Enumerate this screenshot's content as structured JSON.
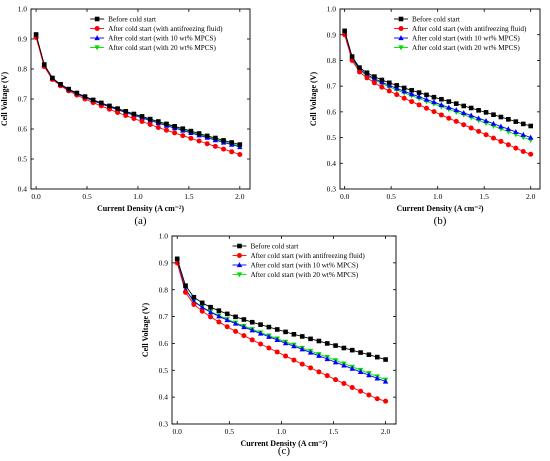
{
  "chart_data": [
    {
      "type": "line",
      "panel_label": "(a)",
      "xlabel": "Current Density (A cm⁻²)",
      "ylabel": "Cell Voltage (V)",
      "xlim": [
        -0.05,
        2.1
      ],
      "ylim": [
        0.4,
        1.0
      ],
      "xticks": [
        "0.0",
        "0.5",
        "1.0",
        "1.5",
        "2.0"
      ],
      "yticks": [
        "0.4",
        "0.5",
        "0.6",
        "0.7",
        "0.8",
        "0.9",
        "1.0"
      ],
      "legend_position": "top-right",
      "x": [
        0.0,
        0.08,
        0.16,
        0.24,
        0.32,
        0.4,
        0.48,
        0.56,
        0.64,
        0.72,
        0.8,
        0.88,
        0.96,
        1.04,
        1.12,
        1.2,
        1.28,
        1.36,
        1.44,
        1.52,
        1.6,
        1.68,
        1.76,
        1.84,
        1.92,
        2.0
      ],
      "series": [
        {
          "name": "Before cold start",
          "color": "#000000",
          "marker": "square",
          "values": [
            0.915,
            0.815,
            0.77,
            0.749,
            0.733,
            0.72,
            0.708,
            0.697,
            0.687,
            0.677,
            0.668,
            0.659,
            0.65,
            0.642,
            0.633,
            0.625,
            0.617,
            0.609,
            0.601,
            0.593,
            0.585,
            0.577,
            0.57,
            0.562,
            0.555,
            0.548
          ]
        },
        {
          "name": "After cold start (with antifreezing fluid)",
          "color": "#ff0000",
          "marker": "circle",
          "values": [
            0.905,
            0.808,
            0.765,
            0.744,
            0.727,
            0.713,
            0.7,
            0.688,
            0.677,
            0.666,
            0.655,
            0.645,
            0.635,
            0.625,
            0.615,
            0.605,
            0.596,
            0.587,
            0.578,
            0.569,
            0.56,
            0.551,
            0.542,
            0.533,
            0.524,
            0.515
          ]
        },
        {
          "name": "After cold start (with 10 wt% MPCS)",
          "color": "#0000ff",
          "marker": "triangle-up",
          "values": [
            0.91,
            0.81,
            0.768,
            0.747,
            0.731,
            0.717,
            0.705,
            0.694,
            0.684,
            0.674,
            0.664,
            0.655,
            0.646,
            0.637,
            0.628,
            0.62,
            0.611,
            0.603,
            0.595,
            0.587,
            0.579,
            0.571,
            0.563,
            0.555,
            0.548,
            0.54
          ]
        },
        {
          "name": "After cold start (with 20 wt% MPCS)",
          "color": "#00dd00",
          "marker": "triangle-down",
          "values": [
            0.908,
            0.811,
            0.768,
            0.747,
            0.731,
            0.718,
            0.706,
            0.695,
            0.685,
            0.675,
            0.666,
            0.657,
            0.648,
            0.639,
            0.631,
            0.622,
            0.614,
            0.606,
            0.598,
            0.59,
            0.582,
            0.574,
            0.566,
            0.559,
            0.551,
            0.544
          ]
        }
      ]
    },
    {
      "type": "line",
      "panel_label": "(b)",
      "xlabel": "Current Density (A cm⁻²)",
      "ylabel": "Cell Voltage (V)",
      "xlim": [
        -0.05,
        2.1
      ],
      "ylim": [
        0.3,
        1.0
      ],
      "xticks": [
        "0.0",
        "0.5",
        "1.0",
        "1.5",
        "2.0"
      ],
      "yticks": [
        "0.3",
        "0.4",
        "0.5",
        "0.6",
        "0.7",
        "0.8",
        "0.9",
        "1.0"
      ],
      "legend_position": "top-right",
      "x": [
        0.0,
        0.08,
        0.16,
        0.24,
        0.32,
        0.4,
        0.48,
        0.56,
        0.64,
        0.72,
        0.8,
        0.88,
        0.96,
        1.04,
        1.12,
        1.2,
        1.28,
        1.36,
        1.44,
        1.52,
        1.6,
        1.68,
        1.76,
        1.84,
        1.92,
        2.0
      ],
      "series": [
        {
          "name": "Before cold start",
          "color": "#000000",
          "marker": "square",
          "values": [
            0.915,
            0.815,
            0.772,
            0.752,
            0.737,
            0.724,
            0.713,
            0.703,
            0.693,
            0.684,
            0.675,
            0.666,
            0.657,
            0.649,
            0.64,
            0.632,
            0.623,
            0.615,
            0.606,
            0.598,
            0.589,
            0.58,
            0.571,
            0.562,
            0.553,
            0.545
          ]
        },
        {
          "name": "After cold start (with antifreezing fluid)",
          "color": "#ff0000",
          "marker": "circle",
          "values": [
            0.9,
            0.8,
            0.755,
            0.732,
            0.713,
            0.696,
            0.681,
            0.667,
            0.653,
            0.64,
            0.627,
            0.614,
            0.601,
            0.588,
            0.575,
            0.563,
            0.55,
            0.537,
            0.524,
            0.511,
            0.498,
            0.485,
            0.472,
            0.459,
            0.446,
            0.435
          ]
        },
        {
          "name": "After cold start (with 10 wt% MPCS)",
          "color": "#0000ff",
          "marker": "triangle-up",
          "values": [
            0.91,
            0.81,
            0.766,
            0.745,
            0.729,
            0.715,
            0.703,
            0.691,
            0.68,
            0.669,
            0.659,
            0.648,
            0.638,
            0.627,
            0.617,
            0.607,
            0.596,
            0.586,
            0.575,
            0.565,
            0.554,
            0.543,
            0.533,
            0.522,
            0.511,
            0.5
          ]
        },
        {
          "name": "After cold start (with 20 wt% MPCS)",
          "color": "#00dd00",
          "marker": "triangle-down",
          "values": [
            0.905,
            0.806,
            0.762,
            0.741,
            0.724,
            0.71,
            0.697,
            0.685,
            0.674,
            0.663,
            0.652,
            0.641,
            0.631,
            0.62,
            0.61,
            0.599,
            0.589,
            0.578,
            0.567,
            0.556,
            0.545,
            0.534,
            0.523,
            0.512,
            0.501,
            0.49
          ]
        }
      ]
    },
    {
      "type": "line",
      "panel_label": "(c)",
      "xlabel": "Current Density (A cm⁻²)",
      "ylabel": "Cell Voltage (V)",
      "xlim": [
        -0.05,
        2.1
      ],
      "ylim": [
        0.3,
        1.0
      ],
      "xticks": [
        "0.0",
        "0.5",
        "1.0",
        "1.5",
        "2.0"
      ],
      "yticks": [
        "0.3",
        "0.4",
        "0.5",
        "0.6",
        "0.7",
        "0.8",
        "0.9",
        "1.0"
      ],
      "legend_position": "top-right",
      "x": [
        0.0,
        0.08,
        0.16,
        0.24,
        0.32,
        0.4,
        0.48,
        0.56,
        0.64,
        0.72,
        0.8,
        0.88,
        0.96,
        1.04,
        1.12,
        1.2,
        1.28,
        1.36,
        1.44,
        1.52,
        1.6,
        1.68,
        1.76,
        1.84,
        1.92,
        2.0
      ],
      "series": [
        {
          "name": "Before cold start",
          "color": "#000000",
          "marker": "square",
          "values": [
            0.915,
            0.815,
            0.772,
            0.751,
            0.735,
            0.722,
            0.71,
            0.699,
            0.689,
            0.679,
            0.67,
            0.661,
            0.652,
            0.643,
            0.634,
            0.626,
            0.617,
            0.609,
            0.6,
            0.592,
            0.583,
            0.575,
            0.566,
            0.558,
            0.549,
            0.54
          ]
        },
        {
          "name": "After cold start (with antifreezing fluid)",
          "color": "#ff0000",
          "marker": "circle",
          "values": [
            0.9,
            0.79,
            0.745,
            0.72,
            0.699,
            0.68,
            0.662,
            0.645,
            0.629,
            0.613,
            0.598,
            0.583,
            0.568,
            0.553,
            0.538,
            0.523,
            0.509,
            0.494,
            0.48,
            0.465,
            0.451,
            0.436,
            0.422,
            0.408,
            0.394,
            0.385
          ]
        },
        {
          "name": "After cold start (with 10 wt% MPCS)",
          "color": "#0000ff",
          "marker": "triangle-up",
          "values": [
            0.905,
            0.8,
            0.756,
            0.734,
            0.716,
            0.701,
            0.687,
            0.674,
            0.661,
            0.649,
            0.637,
            0.625,
            0.613,
            0.601,
            0.59,
            0.578,
            0.566,
            0.554,
            0.542,
            0.53,
            0.518,
            0.506,
            0.494,
            0.482,
            0.47,
            0.458
          ]
        },
        {
          "name": "After cold start (with 20 wt% MPCS)",
          "color": "#00dd00",
          "marker": "triangle-down",
          "values": [
            0.905,
            0.802,
            0.758,
            0.736,
            0.719,
            0.704,
            0.69,
            0.677,
            0.665,
            0.653,
            0.641,
            0.629,
            0.618,
            0.606,
            0.595,
            0.583,
            0.572,
            0.56,
            0.549,
            0.537,
            0.525,
            0.513,
            0.501,
            0.489,
            0.477,
            0.465
          ]
        }
      ]
    }
  ]
}
